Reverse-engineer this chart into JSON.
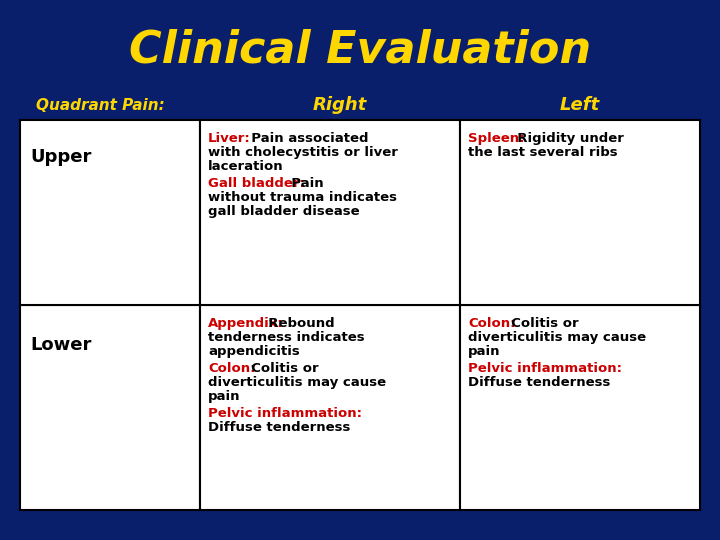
{
  "title": "Clinical Evaluation",
  "title_color": "#FFD700",
  "background_color": "#0A1F6B",
  "header_row": [
    "Quadrant Pain:",
    "Right",
    "Left"
  ],
  "header_color": "#FFD700",
  "row_labels": [
    "Upper",
    "Lower"
  ],
  "cell_bg": "#FFFFFF",
  "cell_text_color": "#000000",
  "red_color": "#CC0000",
  "upper_right_segments": [
    {
      "label": "Liver:",
      "label_color": "#CC0000",
      "text": "  Pain associated\nwith cholecystitis or liver\nlaceration",
      "text_color": "#000000"
    },
    {
      "label": "Gall bladder:",
      "label_color": "#CC0000",
      "text": "  Pain\nwithout trauma indicates\ngall bladder disease",
      "text_color": "#000000"
    }
  ],
  "upper_left_segments": [
    {
      "label": "Spleen:",
      "label_color": "#CC0000",
      "text": "  Rigidity under\nthe last several ribs",
      "text_color": "#000000"
    }
  ],
  "lower_right_segments": [
    {
      "label": "Appendix:",
      "label_color": "#CC0000",
      "text": "  Rebound\ntenderness indicates\nappendicitis",
      "text_color": "#000000"
    },
    {
      "label": "Colon:",
      "label_color": "#CC0000",
      "text": "  Colitis or\ndiverticulitis may cause\npain",
      "text_color": "#000000"
    },
    {
      "label": "Pelvic inflammation:",
      "label_color": "#CC0000",
      "text": "\nDiffuse tenderness",
      "text_color": "#000000"
    }
  ],
  "lower_left_segments": [
    {
      "label": "Colon:",
      "label_color": "#CC0000",
      "text": "  Colitis or\ndiverticulitis may cause\npain",
      "text_color": "#000000"
    },
    {
      "label": "Pelvic inflammation:",
      "label_color": "#CC0000",
      "text": "\nDiffuse tenderness",
      "text_color": "#000000"
    }
  ]
}
